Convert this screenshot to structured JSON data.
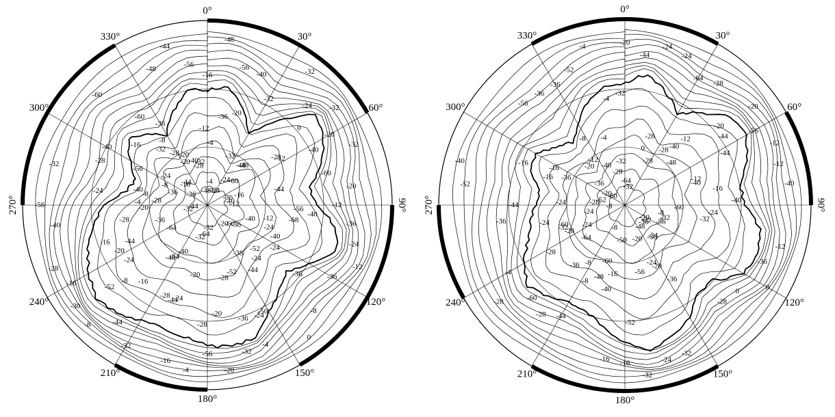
{
  "longitude_labels": [
    "0°",
    "30°",
    "60°",
    "90°",
    "120°",
    "150°",
    "180°",
    "210°",
    "240°",
    "270°",
    "300°",
    "330°"
  ],
  "maps": [
    {
      "name": "left-polar-map",
      "contour_labels": [
        "-16",
        "-24",
        "-28",
        "-32",
        "-20",
        "-28",
        "-24",
        "-20",
        "-12",
        "-4",
        "-8",
        "-16",
        "-32",
        "-28",
        "-36",
        "-40",
        "-48",
        "-32",
        "-60",
        "-56",
        "-52",
        "-48",
        "-44",
        "-40",
        "-28",
        "-24",
        "-20",
        "-12",
        "-16",
        "-24",
        "-32",
        "-36",
        "-40",
        "-44",
        "-48",
        "-52",
        "-56",
        "-60",
        "-64",
        "-60",
        "-68",
        "-64",
        "-56",
        "-50",
        "-36",
        "-32",
        "-28",
        "-40",
        "-36",
        "-32",
        "-24",
        "-20",
        "-16",
        "-12",
        "-8",
        "-4",
        "-20",
        "-24",
        "-28",
        "-32",
        "-36",
        "-40",
        "-44",
        "-40",
        "-52",
        "-56",
        "-60",
        "-64",
        "-32",
        "-36",
        "-44",
        "-48",
        "-56",
        "-44",
        "-40",
        "-30",
        "-36",
        "-38",
        "-32",
        "-40",
        "-44",
        "-48",
        "-40",
        "-36",
        "-32",
        "-28",
        "-24",
        "-20",
        "-16",
        "-12",
        "-8",
        "-4",
        "0",
        "-4",
        "-8",
        "-12",
        "-16",
        "-20",
        "-24",
        "-28",
        "-36",
        "-40",
        "-44",
        "-24",
        "-28",
        "-32",
        "-20",
        "-16",
        "-12",
        "-8",
        "-4",
        "0",
        "-8",
        "-12",
        "-16",
        "-20",
        "-24",
        "-28",
        "-32",
        "-36",
        "-40",
        "-44",
        "-48",
        "-56",
        "-60",
        "-20",
        "-24",
        "-28",
        "-32",
        "-36",
        "-24"
      ]
    },
    {
      "name": "right-polar-map",
      "contour_labels": [
        "-20",
        "-24",
        "-28",
        "-20",
        "-16",
        "-8",
        "-12",
        "-24",
        "-28",
        "-32",
        "-36",
        "-40",
        "-44",
        "-28",
        "-32",
        "-36",
        "-40",
        "-52",
        "-56",
        "-60",
        "-64",
        "-44",
        "-48",
        "-52",
        "-56",
        "-60",
        "-40",
        "-36",
        "-32",
        "-28",
        "-24",
        "-20",
        "-16",
        "-28",
        "-32",
        "-36",
        "-44",
        "-48",
        "-50",
        "-36",
        "-32",
        "-28",
        "-24",
        "-20",
        "-16",
        "-12",
        "-8",
        "-4",
        "0",
        "-24",
        "-28",
        "-32",
        "-36",
        "-40",
        "-60",
        "-64",
        "-56",
        "-52",
        "-44",
        "-40",
        "-36",
        "-32",
        "-28",
        "-24",
        "-20",
        "-16",
        "-12",
        "-8",
        "-4",
        "0",
        "-8",
        "-12",
        "-16",
        "-20",
        "-24",
        "-28",
        "-32",
        "-36",
        "-40",
        "-44",
        "-48",
        "-52",
        "-56",
        "-60",
        "-64",
        "-56",
        "-60",
        "-40",
        "-36",
        "-32",
        "-28",
        "-24",
        "-20",
        "-16",
        "-12",
        "-8",
        "-4",
        "0",
        "-24",
        "-16",
        "-12",
        "-8",
        "-4",
        "-20",
        "-24",
        "-28"
      ]
    }
  ]
}
